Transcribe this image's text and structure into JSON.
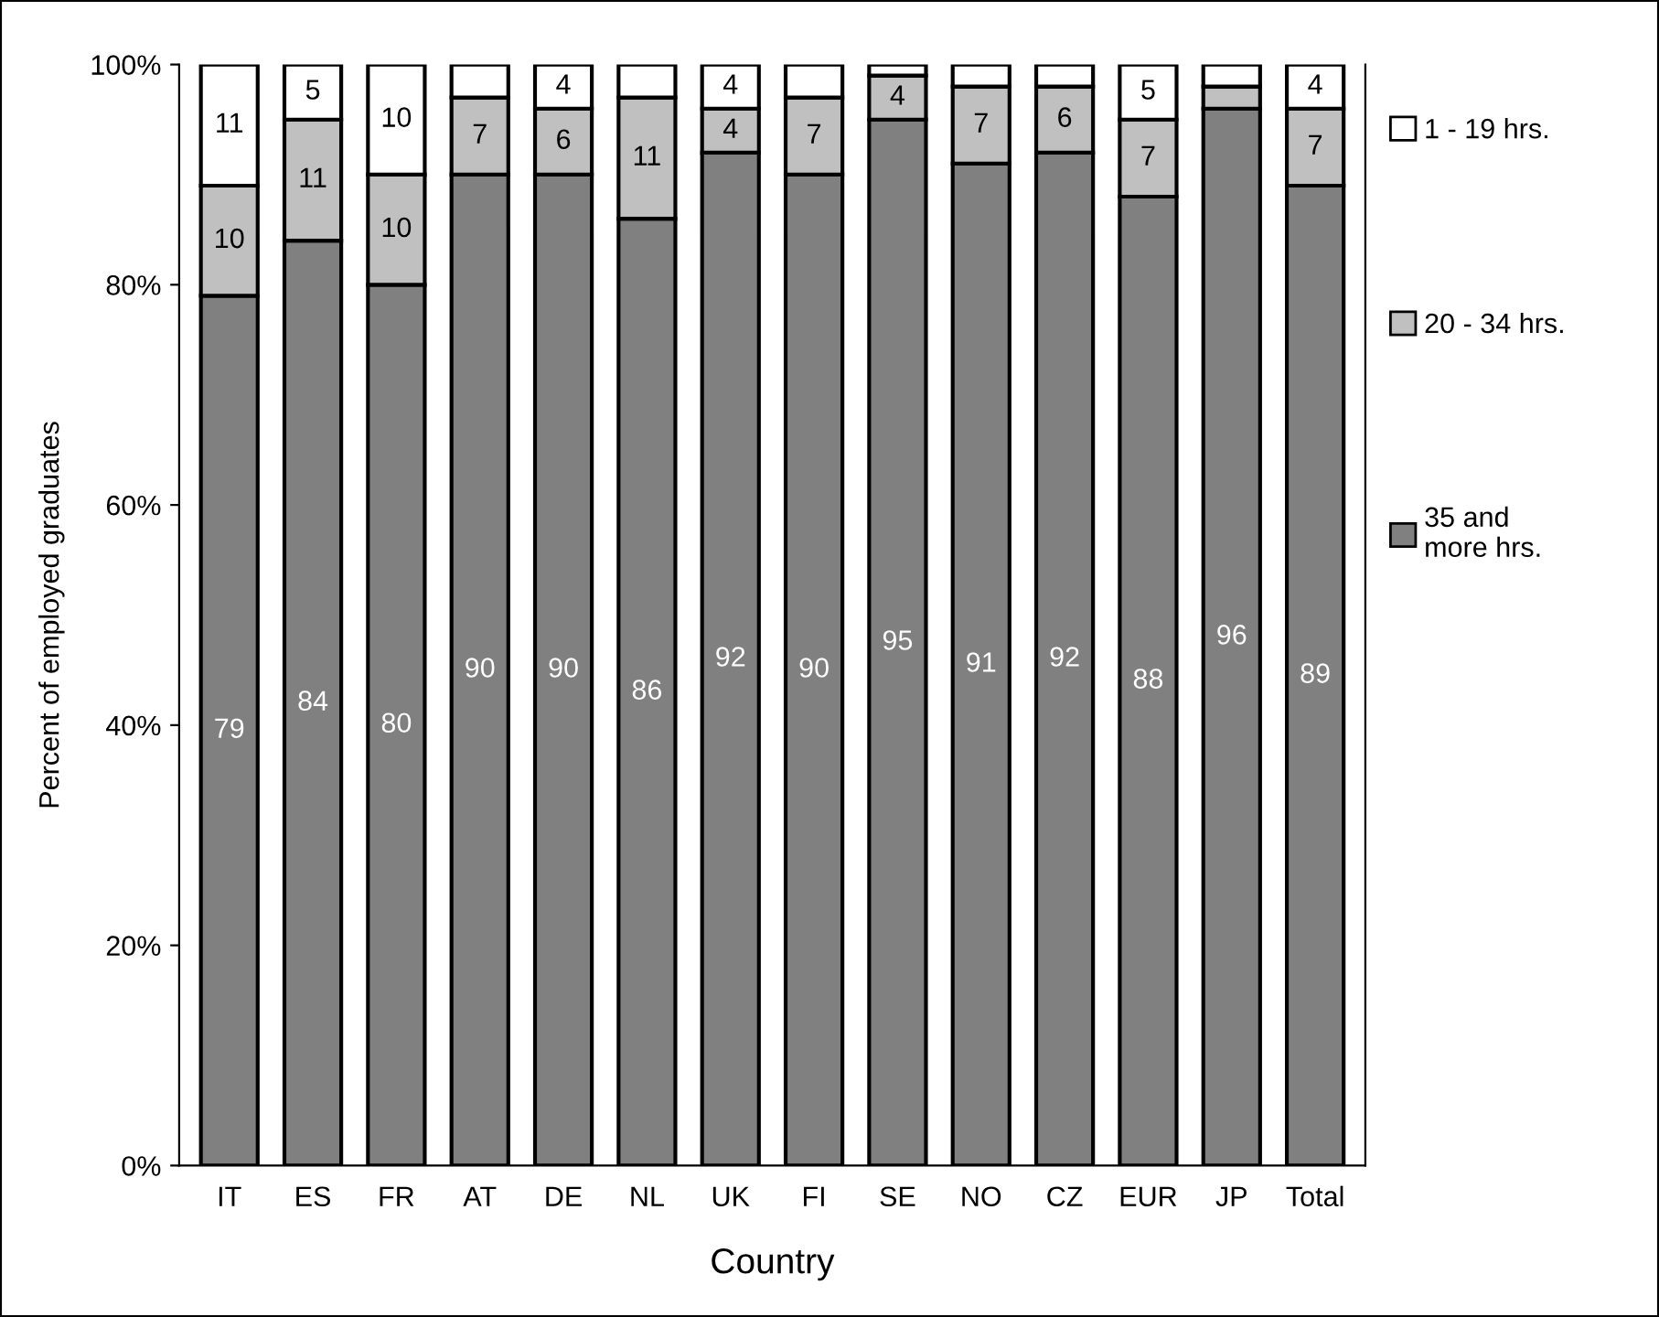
{
  "chart_data": {
    "type": "bar",
    "stacked": true,
    "xlabel": "Country",
    "ylabel": "Percent of employed graduates",
    "categories": [
      "IT",
      "ES",
      "FR",
      "AT",
      "DE",
      "NL",
      "UK",
      "FI",
      "SE",
      "NO",
      "CZ",
      "EUR",
      "JP",
      "Total"
    ],
    "series": [
      {
        "name": "35 and\nmore hrs.",
        "color": "#808080",
        "values": [
          79,
          84,
          80,
          90,
          90,
          86,
          92,
          90,
          95,
          91,
          92,
          88,
          96,
          89
        ],
        "value_labels": [
          "79",
          "84",
          "80",
          "90",
          "90",
          "86",
          "92",
          "90",
          "95",
          "91",
          "92",
          "88",
          "96",
          "89"
        ]
      },
      {
        "name": "20 - 34 hrs.",
        "color": "#c0c0c0",
        "values": [
          10,
          11,
          10,
          7,
          6,
          11,
          4,
          7,
          4,
          7,
          6,
          7,
          2,
          7
        ],
        "value_labels": [
          "10",
          "11",
          "10",
          "7",
          "6",
          "11",
          "4",
          "7",
          "4",
          "7",
          "6",
          "7",
          null,
          "7"
        ]
      },
      {
        "name": "1 - 19 hrs.",
        "color": "#ffffff",
        "values": [
          11,
          5,
          10,
          3,
          4,
          3,
          4,
          3,
          1,
          2,
          2,
          5,
          2,
          4
        ],
        "value_labels": [
          "11",
          "5",
          "10",
          null,
          "4",
          null,
          "4",
          null,
          null,
          null,
          null,
          "5",
          null,
          "4"
        ]
      }
    ],
    "ylim": [
      0,
      100
    ],
    "yticks": [
      {
        "value": 0,
        "label": "0%"
      },
      {
        "value": 20,
        "label": "20%"
      },
      {
        "value": 40,
        "label": "40%"
      },
      {
        "value": 60,
        "label": "60%"
      },
      {
        "value": 80,
        "label": "80%"
      },
      {
        "value": 100,
        "label": "100%"
      }
    ],
    "grid": false,
    "legend": "right"
  }
}
